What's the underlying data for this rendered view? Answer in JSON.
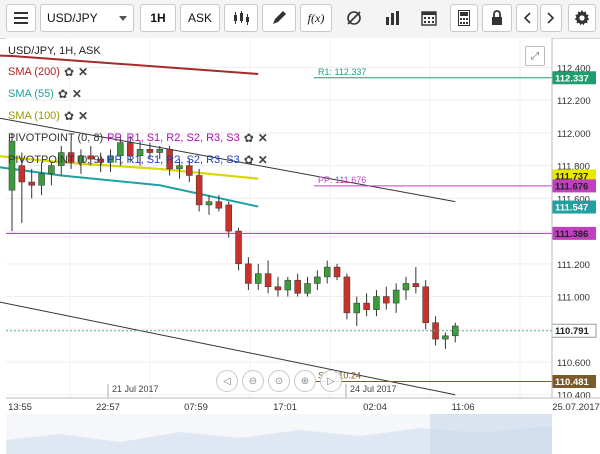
{
  "toolbar": {
    "symbol": "USD/JPY",
    "interval": "1H",
    "price_side": "ASK",
    "fx_label": "f(x)",
    "colors": {
      "background": "#f4f4f4",
      "button_border": "#c9c9c9"
    }
  },
  "chart": {
    "title": "USD/JPY, 1H, ASK",
    "indicators": [
      {
        "label": "SMA (200)",
        "color": "#b22222"
      },
      {
        "label": "SMA (55)",
        "color": "#20a0a0"
      },
      {
        "label": "SMA (100)",
        "color": "#c8c800"
      },
      {
        "label": "PIVOTPOINT (0, 8)",
        "parts": [
          "PP,",
          "R1,",
          "S1,",
          "R2,",
          "S2,",
          "R3,",
          "S3"
        ],
        "color": "#333333",
        "part_color": "#b010b0"
      },
      {
        "label": "PIVOTPOINT (0, 9)",
        "parts": [
          "PP,",
          "R1,",
          "S1,",
          "R2,",
          "S2,",
          "R3,",
          "S3"
        ],
        "color": "#333333",
        "part_color": "#2040c0"
      }
    ],
    "price_tags": [
      {
        "text": "112.337",
        "color": "#1e9e6e"
      },
      {
        "text": "111.737",
        "color": "#e8e800"
      },
      {
        "text": "111.676",
        "color": "#c040c0"
      },
      {
        "text": "111.547",
        "color": "#20a0a0"
      },
      {
        "text": "111.386",
        "color": "#c040c0"
      },
      {
        "text": "110.791",
        "color": "#ffffff"
      },
      {
        "text": "110.481",
        "color": "#7a5a2a"
      }
    ],
    "level_labels": {
      "r1": "R1: 112.337",
      "pp": "PP: 111.676",
      "s1": "S1: 110.24"
    },
    "x_labels": [
      "13:55",
      "22:57",
      "07:59",
      "17:01",
      "02:04",
      "11:06"
    ],
    "x_date_right": "25.07.2017",
    "date_markers": [
      "21 Jul 2017",
      "24 Jul 2017"
    ]
  },
  "chart_data": {
    "type": "candlestick",
    "title": "USD/JPY, 1H, ASK",
    "ylim": [
      110.38,
      112.58
    ],
    "yticks": [
      112.4,
      112.2,
      112.0,
      111.8,
      111.6,
      111.4,
      111.2,
      111.0,
      110.8,
      110.6,
      110.4
    ],
    "candles": [
      {
        "o": 111.65,
        "h": 112.0,
        "l": 111.4,
        "c": 111.95
      },
      {
        "o": 111.8,
        "h": 111.88,
        "l": 111.45,
        "c": 111.7
      },
      {
        "o": 111.7,
        "h": 111.78,
        "l": 111.6,
        "c": 111.68
      },
      {
        "o": 111.68,
        "h": 111.82,
        "l": 111.62,
        "c": 111.75
      },
      {
        "o": 111.75,
        "h": 111.82,
        "l": 111.68,
        "c": 111.8
      },
      {
        "o": 111.8,
        "h": 111.92,
        "l": 111.74,
        "c": 111.88
      },
      {
        "o": 111.88,
        "h": 111.95,
        "l": 111.78,
        "c": 111.82
      },
      {
        "o": 111.82,
        "h": 111.9,
        "l": 111.75,
        "c": 111.86
      },
      {
        "o": 111.86,
        "h": 111.92,
        "l": 111.8,
        "c": 111.84
      },
      {
        "o": 111.84,
        "h": 111.88,
        "l": 111.76,
        "c": 111.82
      },
      {
        "o": 111.82,
        "h": 111.9,
        "l": 111.76,
        "c": 111.86
      },
      {
        "o": 111.86,
        "h": 111.98,
        "l": 111.8,
        "c": 111.94
      },
      {
        "o": 111.94,
        "h": 111.98,
        "l": 111.82,
        "c": 111.86
      },
      {
        "o": 111.86,
        "h": 111.95,
        "l": 111.8,
        "c": 111.9
      },
      {
        "o": 111.9,
        "h": 111.94,
        "l": 111.84,
        "c": 111.88
      },
      {
        "o": 111.88,
        "h": 111.92,
        "l": 111.84,
        "c": 111.9
      },
      {
        "o": 111.9,
        "h": 111.92,
        "l": 111.74,
        "c": 111.78
      },
      {
        "o": 111.78,
        "h": 111.84,
        "l": 111.72,
        "c": 111.8
      },
      {
        "o": 111.8,
        "h": 111.84,
        "l": 111.7,
        "c": 111.74
      },
      {
        "o": 111.74,
        "h": 111.78,
        "l": 111.52,
        "c": 111.56
      },
      {
        "o": 111.56,
        "h": 111.62,
        "l": 111.5,
        "c": 111.58
      },
      {
        "o": 111.58,
        "h": 111.62,
        "l": 111.52,
        "c": 111.54
      },
      {
        "o": 111.56,
        "h": 111.58,
        "l": 111.36,
        "c": 111.4
      },
      {
        "o": 111.4,
        "h": 111.42,
        "l": 111.16,
        "c": 111.2
      },
      {
        "o": 111.2,
        "h": 111.24,
        "l": 111.04,
        "c": 111.08
      },
      {
        "o": 111.08,
        "h": 111.2,
        "l": 111.04,
        "c": 111.14
      },
      {
        "o": 111.14,
        "h": 111.22,
        "l": 111.02,
        "c": 111.06
      },
      {
        "o": 111.06,
        "h": 111.12,
        "l": 111.0,
        "c": 111.04
      },
      {
        "o": 111.04,
        "h": 111.12,
        "l": 111.0,
        "c": 111.1
      },
      {
        "o": 111.1,
        "h": 111.14,
        "l": 111.0,
        "c": 111.02
      },
      {
        "o": 111.02,
        "h": 111.12,
        "l": 111.0,
        "c": 111.08
      },
      {
        "o": 111.08,
        "h": 111.16,
        "l": 111.04,
        "c": 111.12
      },
      {
        "o": 111.12,
        "h": 111.22,
        "l": 111.08,
        "c": 111.18
      },
      {
        "o": 111.18,
        "h": 111.2,
        "l": 111.1,
        "c": 111.12
      },
      {
        "o": 111.12,
        "h": 111.14,
        "l": 110.86,
        "c": 110.9
      },
      {
        "o": 110.9,
        "h": 111.0,
        "l": 110.82,
        "c": 110.96
      },
      {
        "o": 110.96,
        "h": 111.02,
        "l": 110.88,
        "c": 110.92
      },
      {
        "o": 110.92,
        "h": 111.04,
        "l": 110.88,
        "c": 111.0
      },
      {
        "o": 111.0,
        "h": 111.06,
        "l": 110.92,
        "c": 110.96
      },
      {
        "o": 110.96,
        "h": 111.08,
        "l": 110.9,
        "c": 111.04
      },
      {
        "o": 111.04,
        "h": 111.12,
        "l": 110.98,
        "c": 111.08
      },
      {
        "o": 111.08,
        "h": 111.18,
        "l": 111.02,
        "c": 111.06
      },
      {
        "o": 111.06,
        "h": 111.1,
        "l": 110.8,
        "c": 110.84
      },
      {
        "o": 110.84,
        "h": 110.88,
        "l": 110.7,
        "c": 110.74
      },
      {
        "o": 110.74,
        "h": 110.78,
        "l": 110.68,
        "c": 110.76
      },
      {
        "o": 110.76,
        "h": 110.84,
        "l": 110.72,
        "c": 110.82
      }
    ],
    "sma200": [
      [
        -70,
        112.6
      ],
      [
        0,
        112.47
      ],
      [
        25,
        112.36
      ]
    ],
    "sma100": [
      [
        -45,
        112.05
      ],
      [
        -35,
        112.0
      ],
      [
        -25,
        111.97
      ],
      [
        -15,
        111.94
      ],
      [
        -5,
        111.88
      ],
      [
        5,
        111.82
      ],
      [
        15,
        111.78
      ],
      [
        25,
        111.72
      ]
    ],
    "sma55": [
      [
        -45,
        112.0
      ],
      [
        -35,
        111.96
      ],
      [
        -25,
        111.9
      ],
      [
        -15,
        111.88
      ],
      [
        -5,
        111.82
      ],
      [
        5,
        111.74
      ],
      [
        15,
        111.68
      ],
      [
        25,
        111.55
      ]
    ],
    "trendlines": [
      {
        "p1": [
          -4,
          112.12
        ],
        "p2": [
          45,
          111.58
        ]
      },
      {
        "p1": [
          -4,
          111.0
        ],
        "p2": [
          45,
          110.4
        ]
      }
    ],
    "levels": {
      "r1": 112.337,
      "pp": 111.676,
      "s1": 110.24,
      "purple": 111.386,
      "last": 110.791,
      "bottom": 110.481
    }
  }
}
